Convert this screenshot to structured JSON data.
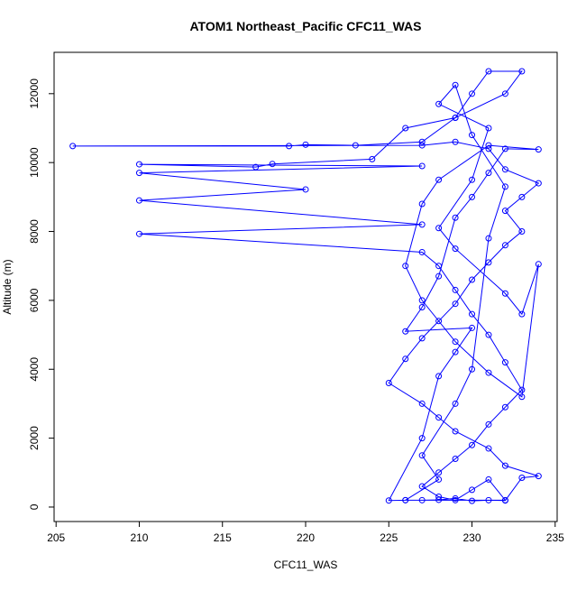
{
  "chart_data": {
    "type": "line",
    "title": "ATOM1 Northeast_Pacific CFC11_WAS",
    "x_label": "CFC11_WAS",
    "y_label": "Altitude (m)",
    "xlim": [
      204.88,
      235.12
    ],
    "xticks": [
      205,
      210,
      215,
      220,
      225,
      230,
      235
    ],
    "ylim": [
      -420,
      13200
    ],
    "yticks": [
      0,
      2000,
      4000,
      6000,
      8000,
      10000,
      12000
    ],
    "series": [
      {
        "color": "#0000ff",
        "x": [
          227,
          228,
          229,
          230,
          231,
          232,
          233,
          234,
          232,
          231,
          229,
          228,
          227,
          225,
          226,
          227,
          228,
          229,
          230,
          231,
          232,
          233,
          232,
          233,
          234,
          232,
          231,
          229,
          227,
          206,
          219,
          220,
          223,
          227,
          229,
          230,
          231,
          233,
          232,
          229,
          226,
          224,
          218,
          217,
          210,
          227,
          210,
          220,
          210,
          227,
          210,
          227,
          228,
          229,
          230,
          231,
          232,
          233,
          232,
          231,
          230,
          229,
          228,
          227,
          228,
          229,
          230,
          231,
          232,
          226,
          225,
          227,
          228,
          229,
          230,
          226,
          227,
          228,
          229,
          230,
          231,
          232,
          234,
          231,
          228,
          227,
          226,
          227,
          229,
          231,
          233,
          234,
          233,
          232,
          229,
          228,
          230,
          231,
          228,
          229,
          230,
          232,
          231,
          230,
          229,
          227,
          228,
          226
        ],
        "values": [
          200,
          210,
          250,
          180,
          200,
          190,
          850,
          900,
          1200,
          1700,
          2200,
          2600,
          3000,
          3600,
          4300,
          4900,
          5400,
          5900,
          6600,
          7100,
          7600,
          8000,
          8600,
          9000,
          9400,
          9800,
          10400,
          10600,
          10500,
          10480,
          10480,
          10520,
          10500,
          10600,
          11300,
          12000,
          12650,
          12650,
          12000,
          11300,
          11000,
          10100,
          9960,
          9870,
          9950,
          9900,
          9700,
          9220,
          8900,
          8200,
          7930,
          7400,
          7000,
          6300,
          5600,
          5000,
          4200,
          3400,
          2900,
          2400,
          1800,
          1400,
          1000,
          600,
          300,
          200,
          500,
          800,
          200,
          200,
          190,
          2000,
          3800,
          4500,
          5200,
          5100,
          5800,
          6700,
          8400,
          9000,
          9700,
          10400,
          10380,
          10500,
          9500,
          8800,
          7000,
          6000,
          4800,
          3900,
          3200,
          7050,
          5600,
          6200,
          7500,
          8100,
          9500,
          11000,
          11700,
          12250,
          10800,
          9300,
          7800,
          4000,
          3000,
          1500,
          800,
          200
        ]
      }
    ]
  }
}
